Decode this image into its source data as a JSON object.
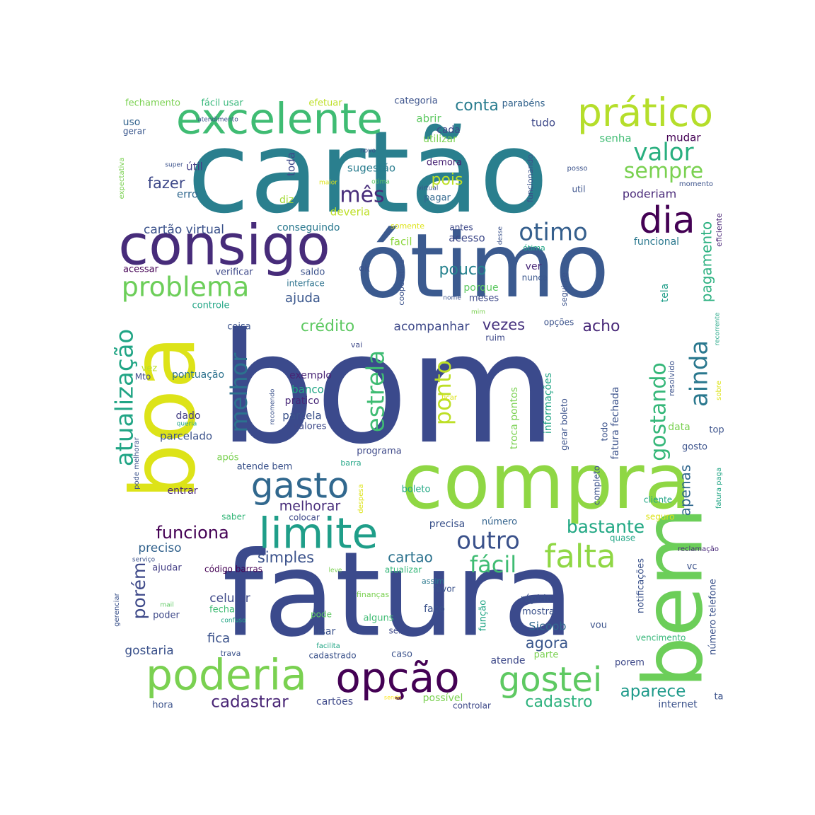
{
  "palette": [
    "#440154",
    "#472c7a",
    "#3b518b",
    "#2c718e",
    "#21908d",
    "#27ad81",
    "#5cc863",
    "#aadc32",
    "#fde725"
  ],
  "words": [
    {
      "text": "bom",
      "color": "#3b4a8c"
    },
    {
      "text": "fatura",
      "color": "#3b4a8c"
    },
    {
      "text": "cartão",
      "color": "#2a7f8e"
    },
    {
      "text": "ótimo",
      "color": "#3b5a8f"
    },
    {
      "text": "compra",
      "color": "#8fd744"
    },
    {
      "text": "boa",
      "color": "#dde318"
    },
    {
      "text": "bem",
      "color": "#6cce59"
    },
    {
      "text": "consigo",
      "color": "#472c7a"
    },
    {
      "text": "excelente",
      "color": "#3fbc73"
    },
    {
      "text": "prático",
      "color": "#b5de2b"
    },
    {
      "text": "poderia",
      "color": "#7ad151"
    },
    {
      "text": "opção",
      "color": "#440154"
    },
    {
      "text": "limite",
      "color": "#1f9e89"
    },
    {
      "text": "gostei",
      "color": "#5ec962"
    },
    {
      "text": "falta",
      "color": "#8fd744"
    },
    {
      "text": "dia",
      "color": "#440154"
    },
    {
      "text": "gasto",
      "color": "#31688e"
    },
    {
      "text": "problema",
      "color": "#6cce59"
    },
    {
      "text": "atualização",
      "color": "#21a585"
    },
    {
      "text": "estrela",
      "color": "#3fbc73"
    },
    {
      "text": "melhor",
      "color": "#2c728e"
    },
    {
      "text": "ainda",
      "color": "#2a788e"
    },
    {
      "text": "gostando",
      "color": "#35b779"
    },
    {
      "text": "ponto",
      "color": "#bddf26"
    },
    {
      "text": "otimo",
      "color": "#355f8d"
    },
    {
      "text": "valor",
      "color": "#29af7f"
    },
    {
      "text": "sempre",
      "color": "#7ad151"
    },
    {
      "text": "outro",
      "color": "#3b528b"
    },
    {
      "text": "fácil",
      "color": "#3fbc73"
    },
    {
      "text": "bastante",
      "color": "#22a884"
    },
    {
      "text": "mês",
      "color": "#472c7a"
    },
    {
      "text": "funciona",
      "color": "#440154"
    },
    {
      "text": "porém",
      "color": "#3e4989"
    },
    {
      "text": "pagamento",
      "color": "#2ab07f"
    },
    {
      "text": "crédito",
      "color": "#5ec962"
    },
    {
      "text": "vezes",
      "color": "#46327e"
    },
    {
      "text": "acho",
      "color": "#482878"
    },
    {
      "text": "pouco",
      "color": "#26828e"
    },
    {
      "text": "pois",
      "color": "#bddf26"
    },
    {
      "text": "conta",
      "color": "#287c8e"
    },
    {
      "text": "fazer",
      "color": "#3e4989"
    },
    {
      "text": "aparece",
      "color": "#1f9a8a"
    },
    {
      "text": "cadastrar",
      "color": "#482475"
    },
    {
      "text": "cadastro",
      "color": "#2db27d"
    },
    {
      "text": "agora",
      "color": "#39568c"
    },
    {
      "text": "apenas",
      "color": "#31688e"
    },
    {
      "text": "simples",
      "color": "#3b528b"
    },
    {
      "text": "melhorar",
      "color": "#472c7a"
    },
    {
      "text": "cartao",
      "color": "#2c728e"
    },
    {
      "text": "preciso",
      "color": "#33638d"
    },
    {
      "text": "fica",
      "color": "#3b528b"
    },
    {
      "text": "gostaria",
      "color": "#3b528b"
    },
    {
      "text": "celular",
      "color": "#3e4989"
    },
    {
      "text": "cartão virtual",
      "color": "#3b528b"
    },
    {
      "text": "Sicoob",
      "color": "#31688e"
    },
    {
      "text": "ajuda",
      "color": "#39568c"
    },
    {
      "text": "acompanhar",
      "color": "#3e4989"
    },
    {
      "text": "fechamento",
      "color": "#7ad151"
    },
    {
      "text": "fácil usar",
      "color": "#35b779"
    },
    {
      "text": "efetuar",
      "color": "#bddf26"
    },
    {
      "text": "categoria",
      "color": "#3b528b"
    },
    {
      "text": "parabéns",
      "color": "#33638d"
    },
    {
      "text": "uso",
      "color": "#33638d"
    },
    {
      "text": "gerar",
      "color": "#39568c"
    },
    {
      "text": "abrir",
      "color": "#5ec962"
    },
    {
      "text": "cada",
      "color": "#3e4989"
    },
    {
      "text": "utilizar",
      "color": "#7ad151"
    },
    {
      "text": "tudo",
      "color": "#3e4989"
    },
    {
      "text": "mudar",
      "color": "#440154"
    },
    {
      "text": "senha",
      "color": "#3fbc73"
    },
    {
      "text": "útil",
      "color": "#433e85"
    },
    {
      "text": "erro",
      "color": "#31688e"
    },
    {
      "text": "sugestão",
      "color": "#287c8e"
    },
    {
      "text": "toda",
      "color": "#3e4989"
    },
    {
      "text": "demora",
      "color": "#482475"
    },
    {
      "text": "pagar",
      "color": "#31688e"
    },
    {
      "text": "deveria",
      "color": "#bddf26"
    },
    {
      "text": "diz",
      "color": "#a5db36"
    },
    {
      "text": "poderiam",
      "color": "#482878"
    },
    {
      "text": "conseguindo",
      "color": "#2a788e"
    },
    {
      "text": "facil",
      "color": "#8fd744"
    },
    {
      "text": "acesso",
      "color": "#3e4989"
    },
    {
      "text": "antes",
      "color": "#3e4989"
    },
    {
      "text": "somente",
      "color": "#dde318"
    },
    {
      "text": "funcional",
      "color": "#2a788e"
    },
    {
      "text": "eficiente",
      "color": "#482475"
    },
    {
      "text": "acessar",
      "color": "#440154"
    },
    {
      "text": "verificar",
      "color": "#3e4989"
    },
    {
      "text": "saldo",
      "color": "#3b528b"
    },
    {
      "text": "interface",
      "color": "#2c728e"
    },
    {
      "text": "ok",
      "color": "#3b528b"
    },
    {
      "text": "ver",
      "color": "#482878"
    },
    {
      "text": "nunca",
      "color": "#39568c"
    },
    {
      "text": "porque",
      "color": "#5ec962"
    },
    {
      "text": "meses",
      "color": "#3e4989"
    },
    {
      "text": "controle",
      "color": "#21a585"
    },
    {
      "text": "coisa",
      "color": "#3b528b"
    },
    {
      "text": "vai",
      "color": "#3e4989"
    },
    {
      "text": "ruim",
      "color": "#3e4989"
    },
    {
      "text": "opções",
      "color": "#3b528b"
    },
    {
      "text": "tela",
      "color": "#1f9e89"
    },
    {
      "text": "vez",
      "color": "#bddf26"
    },
    {
      "text": "Mto",
      "color": "#3e4989"
    },
    {
      "text": "pontuação",
      "color": "#2c728e"
    },
    {
      "text": "exemplo",
      "color": "#482475"
    },
    {
      "text": "banco",
      "color": "#21a585"
    },
    {
      "text": "pratico",
      "color": "#482878"
    },
    {
      "text": "parcela",
      "color": "#3b528b"
    },
    {
      "text": "valores",
      "color": "#3e4989"
    },
    {
      "text": "dado",
      "color": "#433e85"
    },
    {
      "text": "parcelado",
      "color": "#3b528b"
    },
    {
      "text": "após",
      "color": "#7ad151"
    },
    {
      "text": "programa",
      "color": "#3e4989"
    },
    {
      "text": "atende bem",
      "color": "#3b528b"
    },
    {
      "text": "barra",
      "color": "#21a585"
    },
    {
      "text": "entrar",
      "color": "#482878"
    },
    {
      "text": "boleto",
      "color": "#22a884"
    },
    {
      "text": "saber",
      "color": "#35b779"
    },
    {
      "text": "colocar",
      "color": "#3e4989"
    },
    {
      "text": "precisa",
      "color": "#3b528b"
    },
    {
      "text": "número",
      "color": "#33638d"
    },
    {
      "text": "data",
      "color": "#7ad151"
    },
    {
      "text": "top",
      "color": "#3b528b"
    },
    {
      "text": "gosto",
      "color": "#3b528b"
    },
    {
      "text": "cliente",
      "color": "#21a585"
    },
    {
      "text": "seguro",
      "color": "#dde318"
    },
    {
      "text": "quase",
      "color": "#21a585"
    },
    {
      "text": "reclamação",
      "color": "#482878"
    },
    {
      "text": "ajudar",
      "color": "#433e85"
    },
    {
      "text": "código barras",
      "color": "#440154"
    },
    {
      "text": "atualizar",
      "color": "#35b779"
    },
    {
      "text": "assim",
      "color": "#2a788e"
    },
    {
      "text": "favor",
      "color": "#3b528b"
    },
    {
      "text": "finanças",
      "color": "#7ad151"
    },
    {
      "text": "rápido",
      "color": "#3b528b"
    },
    {
      "text": "mostra",
      "color": "#3b528b"
    },
    {
      "text": "faço",
      "color": "#3b528b"
    },
    {
      "text": "alguns",
      "color": "#3fbc73"
    },
    {
      "text": "sei",
      "color": "#3e4989"
    },
    {
      "text": "usar",
      "color": "#3b528b"
    },
    {
      "text": "fecha",
      "color": "#3fbc73"
    },
    {
      "text": "poder",
      "color": "#3e4989"
    },
    {
      "text": "pode",
      "color": "#5ec962"
    },
    {
      "text": "caso",
      "color": "#3b528b"
    },
    {
      "text": "cadastrado",
      "color": "#3b528b"
    },
    {
      "text": "atende",
      "color": "#3e4989"
    },
    {
      "text": "parte",
      "color": "#7ad151"
    },
    {
      "text": "porem",
      "color": "#3e4989"
    },
    {
      "text": "vou",
      "color": "#3b528b"
    },
    {
      "text": "vencimento",
      "color": "#35b779"
    },
    {
      "text": "hora",
      "color": "#3b528b"
    },
    {
      "text": "cartões",
      "color": "#3e4989"
    },
    {
      "text": "possível",
      "color": "#7ad151"
    },
    {
      "text": "controlar",
      "color": "#3e4989"
    },
    {
      "text": "internet",
      "color": "#3b528b"
    },
    {
      "text": "trava",
      "color": "#3b528b"
    },
    {
      "text": "facilita",
      "color": "#21a585"
    },
    {
      "text": "sendo",
      "color": "#fde725"
    },
    {
      "text": "ta",
      "color": "#3b528b"
    },
    {
      "text": "vc",
      "color": "#3b528b"
    },
    {
      "text": "atendimento",
      "color": "#3b528b"
    },
    {
      "text": "novo",
      "color": "#3b528b"
    },
    {
      "text": "super",
      "color": "#3b528b"
    },
    {
      "text": "maior",
      "color": "#dde318"
    },
    {
      "text": "otima",
      "color": "#5ec962"
    },
    {
      "text": "posso",
      "color": "#3b528b"
    },
    {
      "text": "util",
      "color": "#3b528b"
    },
    {
      "text": "virtual",
      "color": "#3b528b"
    },
    {
      "text": "momento",
      "color": "#3b528b"
    },
    {
      "text": "ótima",
      "color": "#21a585"
    },
    {
      "text": "nome",
      "color": "#3b528b"
    },
    {
      "text": "mim",
      "color": "#7ad151"
    },
    {
      "text": "recorrente",
      "color": "#21a585"
    },
    {
      "text": "serviço",
      "color": "#3b528b"
    },
    {
      "text": "leve",
      "color": "#7ad151"
    },
    {
      "text": "mail",
      "color": "#5ec962"
    },
    {
      "text": "confuso",
      "color": "#21a585"
    },
    {
      "text": "queria",
      "color": "#21a585"
    },
    {
      "text": "ficar",
      "color": "#dde318"
    },
    {
      "text": "expectativa",
      "color": "#7ad151"
    },
    {
      "text": "desse",
      "color": "#3b528b"
    },
    {
      "text": "funcionando",
      "color": "#3b528b"
    },
    {
      "text": "cooperativa",
      "color": "#3b528b"
    },
    {
      "text": "seguinte",
      "color": "#3b528b"
    },
    {
      "text": "resolvido",
      "color": "#3b528b"
    },
    {
      "text": "sobre",
      "color": "#dde318"
    },
    {
      "text": "recomendo",
      "color": "#3b528b"
    },
    {
      "text": "troca pontos",
      "color": "#7ad151"
    },
    {
      "text": "informações",
      "color": "#21a585"
    },
    {
      "text": "gerar boleto",
      "color": "#3b528b"
    },
    {
      "text": "todo",
      "color": "#3b528b"
    },
    {
      "text": "fatura fechada",
      "color": "#3b528b"
    },
    {
      "text": "completo",
      "color": "#3b528b"
    },
    {
      "text": "despesa",
      "color": "#dde318"
    },
    {
      "text": "pode melhorar",
      "color": "#3b528b"
    },
    {
      "text": "gerenciar",
      "color": "#3b528b"
    },
    {
      "text": "função",
      "color": "#21a585"
    },
    {
      "text": "notificações",
      "color": "#3b528b"
    },
    {
      "text": "número telefone",
      "color": "#3b528b"
    },
    {
      "text": "fatura paga",
      "color": "#21a585"
    }
  ]
}
